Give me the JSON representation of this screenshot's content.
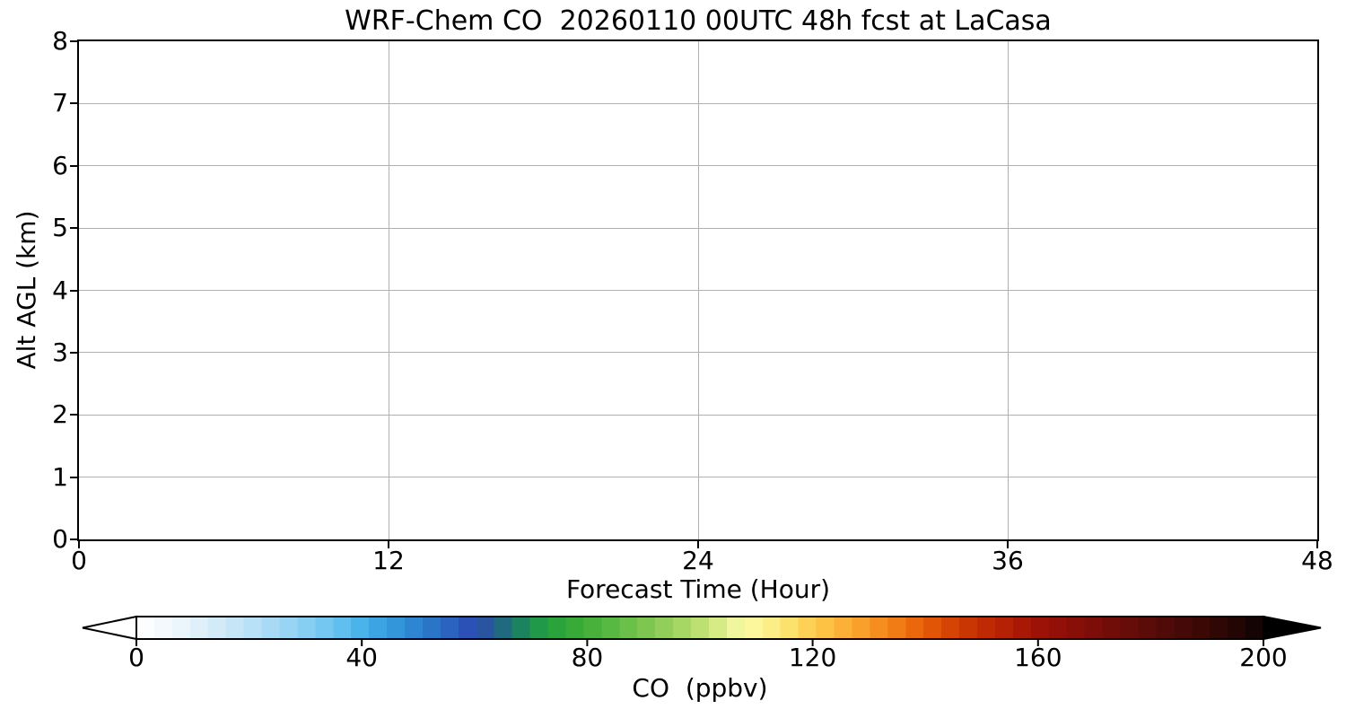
{
  "figure": {
    "background": "#ffffff",
    "text_color": "#000000",
    "spine_color": "#000000",
    "grid_color": "#b0b0b0"
  },
  "chart_data": {
    "type": "heatmap",
    "title": "WRF-Chem CO  20260110 00UTC 48h fcst at LaCasa",
    "xlabel": "Forecast Time (Hour)",
    "ylabel": "Alt AGL (km)",
    "xlim": [
      0,
      48
    ],
    "ylim": [
      0,
      8
    ],
    "xticks": [
      0,
      12,
      24,
      36,
      48
    ],
    "yticks": [
      0,
      1,
      2,
      3,
      4,
      5,
      6,
      7,
      8
    ],
    "grid": true,
    "field_values": "none visible - plot area is blank white (no CO field drawn)",
    "colorbar": {
      "label": "CO  (ppbv)",
      "ticks": [
        0,
        40,
        80,
        120,
        160,
        200
      ],
      "range": [
        0,
        200
      ],
      "extend": "both",
      "under_color": "#ffffff",
      "over_color": "#000000",
      "segments": 63,
      "stops": [
        [
          0,
          "#ffffff"
        ],
        [
          6,
          "#f0f8fd"
        ],
        [
          12,
          "#ddeffa"
        ],
        [
          18,
          "#c4e5f8"
        ],
        [
          24,
          "#a8daf5"
        ],
        [
          30,
          "#88cef3"
        ],
        [
          36,
          "#64c1ef"
        ],
        [
          40,
          "#47b2ea"
        ],
        [
          44,
          "#379fe0"
        ],
        [
          48,
          "#2f8cd5"
        ],
        [
          52,
          "#2b77ca"
        ],
        [
          56,
          "#2b60bf"
        ],
        [
          60,
          "#2c4ab2"
        ],
        [
          63,
          "#265a96"
        ],
        [
          66,
          "#1d7175"
        ],
        [
          69,
          "#1b8a58"
        ],
        [
          72,
          "#219c44"
        ],
        [
          76,
          "#2fa636"
        ],
        [
          80,
          "#42af39"
        ],
        [
          85,
          "#5cba44"
        ],
        [
          90,
          "#7ac64f"
        ],
        [
          95,
          "#99d25e"
        ],
        [
          100,
          "#bce072"
        ],
        [
          103,
          "#d5ea85"
        ],
        [
          106,
          "#eef59b"
        ],
        [
          108,
          "#fbfaa6"
        ],
        [
          111,
          "#fdf392"
        ],
        [
          114,
          "#fde97c"
        ],
        [
          117,
          "#fddc64"
        ],
        [
          120,
          "#fdcc4e"
        ],
        [
          124,
          "#fdb83c"
        ],
        [
          128,
          "#faa32c"
        ],
        [
          132,
          "#f58d1d"
        ],
        [
          136,
          "#ef7410"
        ],
        [
          140,
          "#e55c08"
        ],
        [
          144,
          "#d84605"
        ],
        [
          148,
          "#c93304"
        ],
        [
          152,
          "#bb2604"
        ],
        [
          156,
          "#ad1b05"
        ],
        [
          160,
          "#9e1206"
        ],
        [
          166,
          "#8a0e08"
        ],
        [
          172,
          "#750d09"
        ],
        [
          178,
          "#600c09"
        ],
        [
          184,
          "#4b0a08"
        ],
        [
          190,
          "#370806"
        ],
        [
          195,
          "#240504"
        ],
        [
          200,
          "#0d0302"
        ]
      ]
    }
  }
}
